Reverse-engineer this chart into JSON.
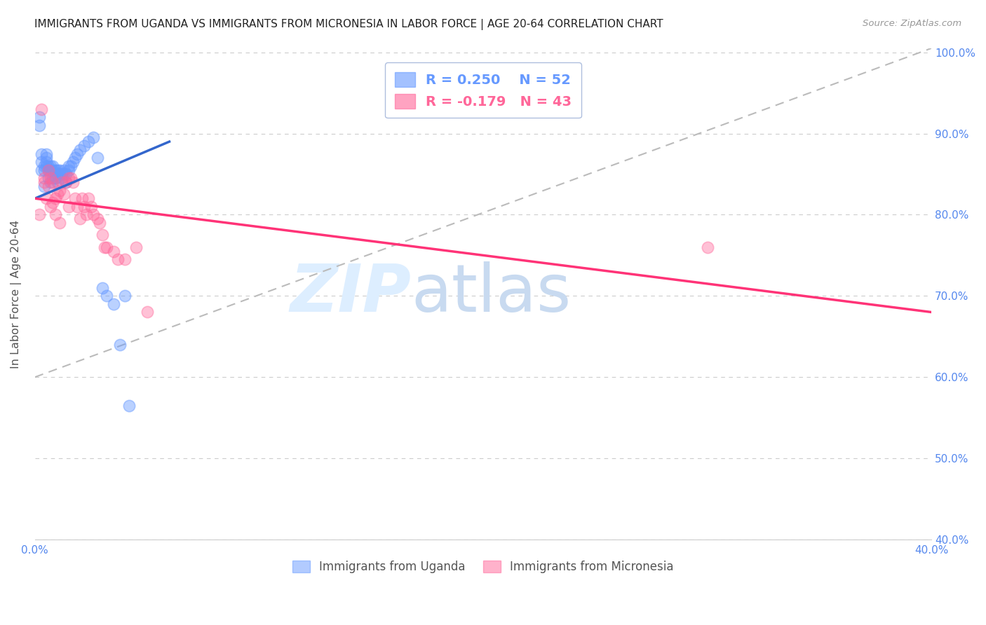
{
  "title": "IMMIGRANTS FROM UGANDA VS IMMIGRANTS FROM MICRONESIA IN LABOR FORCE | AGE 20-64 CORRELATION CHART",
  "source": "Source: ZipAtlas.com",
  "ylabel": "In Labor Force | Age 20-64",
  "xlim": [
    0.0,
    0.4
  ],
  "ylim": [
    0.4,
    1.005
  ],
  "yticks": [
    0.4,
    0.5,
    0.6,
    0.7,
    0.8,
    0.9,
    1.0
  ],
  "ytick_labels": [
    "40.0%",
    "50.0%",
    "60.0%",
    "70.0%",
    "80.0%",
    "90.0%",
    "100.0%"
  ],
  "xticks": [
    0.0,
    0.05,
    0.1,
    0.15,
    0.2,
    0.25,
    0.3,
    0.35,
    0.4
  ],
  "xtick_labels": [
    "0.0%",
    "",
    "",
    "",
    "",
    "",
    "",
    "",
    "40.0%"
  ],
  "uganda_color": "#6699ff",
  "micronesia_color": "#ff6699",
  "uganda_R": 0.25,
  "uganda_N": 52,
  "micronesia_R": -0.179,
  "micronesia_N": 43,
  "uganda_x": [
    0.002,
    0.002,
    0.003,
    0.003,
    0.003,
    0.004,
    0.004,
    0.004,
    0.005,
    0.005,
    0.005,
    0.005,
    0.006,
    0.006,
    0.006,
    0.007,
    0.007,
    0.007,
    0.008,
    0.008,
    0.008,
    0.009,
    0.009,
    0.009,
    0.01,
    0.01,
    0.01,
    0.011,
    0.011,
    0.012,
    0.012,
    0.013,
    0.013,
    0.014,
    0.014,
    0.015,
    0.015,
    0.016,
    0.017,
    0.018,
    0.019,
    0.02,
    0.022,
    0.024,
    0.026,
    0.028,
    0.03,
    0.032,
    0.035,
    0.038,
    0.04,
    0.042
  ],
  "uganda_y": [
    0.91,
    0.92,
    0.855,
    0.865,
    0.875,
    0.855,
    0.86,
    0.835,
    0.86,
    0.865,
    0.87,
    0.875,
    0.845,
    0.855,
    0.86,
    0.84,
    0.855,
    0.86,
    0.845,
    0.855,
    0.86,
    0.845,
    0.855,
    0.845,
    0.85,
    0.855,
    0.84,
    0.85,
    0.855,
    0.845,
    0.85,
    0.85,
    0.855,
    0.85,
    0.84,
    0.855,
    0.86,
    0.86,
    0.865,
    0.87,
    0.875,
    0.88,
    0.885,
    0.89,
    0.895,
    0.87,
    0.71,
    0.7,
    0.69,
    0.64,
    0.7,
    0.565
  ],
  "micronesia_x": [
    0.002,
    0.003,
    0.004,
    0.004,
    0.005,
    0.006,
    0.006,
    0.007,
    0.007,
    0.008,
    0.008,
    0.009,
    0.009,
    0.01,
    0.011,
    0.011,
    0.012,
    0.013,
    0.014,
    0.015,
    0.015,
    0.016,
    0.017,
    0.018,
    0.019,
    0.02,
    0.021,
    0.022,
    0.023,
    0.024,
    0.025,
    0.026,
    0.028,
    0.029,
    0.03,
    0.031,
    0.032,
    0.035,
    0.037,
    0.04,
    0.045,
    0.3,
    0.05
  ],
  "micronesia_y": [
    0.8,
    0.93,
    0.84,
    0.845,
    0.82,
    0.835,
    0.855,
    0.81,
    0.845,
    0.815,
    0.84,
    0.8,
    0.82,
    0.825,
    0.83,
    0.79,
    0.84,
    0.825,
    0.84,
    0.845,
    0.81,
    0.845,
    0.84,
    0.82,
    0.81,
    0.795,
    0.82,
    0.81,
    0.8,
    0.82,
    0.81,
    0.8,
    0.795,
    0.79,
    0.775,
    0.76,
    0.76,
    0.755,
    0.745,
    0.745,
    0.76,
    0.76,
    0.68
  ],
  "uganda_trend_x": [
    0.0,
    0.06
  ],
  "uganda_trend_y": [
    0.82,
    0.89
  ],
  "micronesia_trend_x": [
    0.0,
    0.4
  ],
  "micronesia_trend_y": [
    0.82,
    0.68
  ],
  "ref_line_x": [
    0.0,
    0.4
  ],
  "ref_line_y": [
    0.6,
    1.005
  ],
  "background_color": "#ffffff",
  "axis_tick_color": "#5588ee",
  "grid_color": "#cccccc",
  "watermark_color": "#ddeeff"
}
